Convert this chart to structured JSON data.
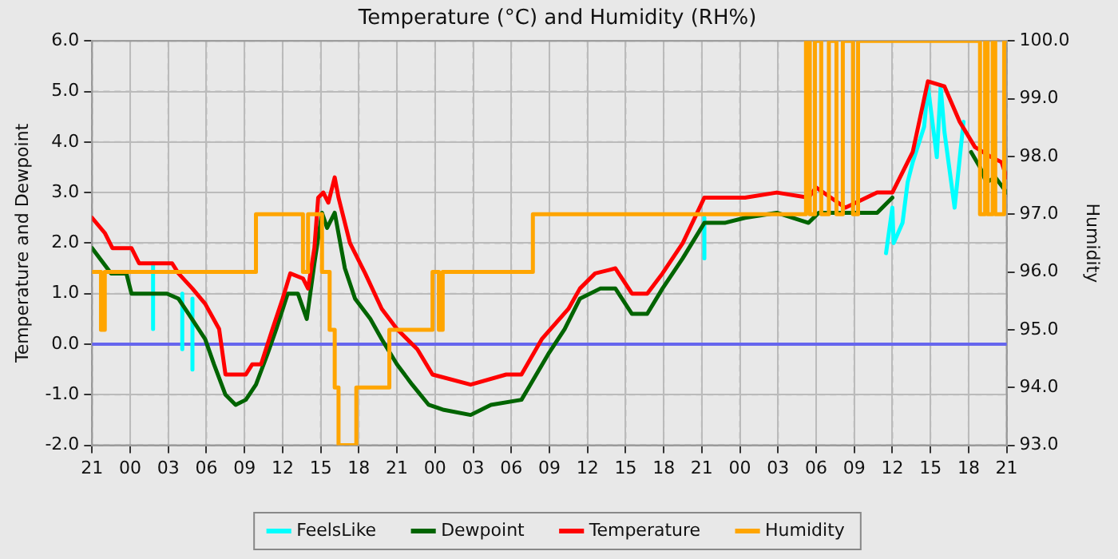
{
  "chart_data": {
    "type": "line",
    "title": "Temperature (°C) and Humidity (RH%)",
    "ylabel": "Temperature and Dewpoint",
    "y2label": "Humidity",
    "xlim": [
      "2000-01-01T21:00",
      "2000-01-04T21:00"
    ],
    "xticks": [
      {
        "value": "2000-01-01T21:00",
        "label": "21"
      },
      {
        "value": "2000-01-02T00:00",
        "label": "00"
      },
      {
        "value": "2000-01-02T03:00",
        "label": "03"
      },
      {
        "value": "2000-01-02T06:00",
        "label": "06"
      },
      {
        "value": "2000-01-02T09:00",
        "label": "09"
      },
      {
        "value": "2000-01-02T12:00",
        "label": "12"
      },
      {
        "value": "2000-01-02T15:00",
        "label": "15"
      },
      {
        "value": "2000-01-02T18:00",
        "label": "18"
      },
      {
        "value": "2000-01-02T21:00",
        "label": "21"
      },
      {
        "value": "2000-01-03T00:00",
        "label": "00"
      },
      {
        "value": "2000-01-03T03:00",
        "label": "03"
      },
      {
        "value": "2000-01-03T06:00",
        "label": "06"
      },
      {
        "value": "2000-01-03T09:00",
        "label": "09"
      },
      {
        "value": "2000-01-03T12:00",
        "label": "12"
      },
      {
        "value": "2000-01-03T15:00",
        "label": "15"
      },
      {
        "value": "2000-01-03T18:00",
        "label": "18"
      },
      {
        "value": "2000-01-03T21:00",
        "label": "21"
      },
      {
        "value": "2000-01-04T00:00",
        "label": "00"
      },
      {
        "value": "2000-01-04T03:00",
        "label": "03"
      },
      {
        "value": "2000-01-04T06:00",
        "label": "06"
      },
      {
        "value": "2000-01-04T09:00",
        "label": "09"
      },
      {
        "value": "2000-01-04T12:00",
        "label": "12"
      },
      {
        "value": "2000-01-04T15:00",
        "label": "15"
      },
      {
        "value": "2000-01-04T18:00",
        "label": "18"
      },
      {
        "value": "2000-01-04T21:00",
        "label": "21"
      }
    ],
    "ylim": [
      -2,
      6
    ],
    "yticks": [
      {
        "value": -2,
        "label": "-2.0"
      },
      {
        "value": -1,
        "label": "-1.0"
      },
      {
        "value": 0,
        "label": "0.0"
      },
      {
        "value": 1,
        "label": "1.0"
      },
      {
        "value": 2,
        "label": "2.0"
      },
      {
        "value": 3,
        "label": "3.0"
      },
      {
        "value": 4,
        "label": "4.0"
      },
      {
        "value": 5,
        "label": "5.0"
      },
      {
        "value": 6,
        "label": "6.0"
      }
    ],
    "y2lim": [
      93,
      100
    ],
    "y2ticks": [
      {
        "value": 93,
        "label": "93.0"
      },
      {
        "value": 94,
        "label": "94.0"
      },
      {
        "value": 95,
        "label": "95.0"
      },
      {
        "value": 96,
        "label": "96.0"
      },
      {
        "value": 97,
        "label": "97.0"
      },
      {
        "value": 98,
        "label": "98.0"
      },
      {
        "value": 99,
        "label": "99.0"
      },
      {
        "value": 100,
        "label": "100.0"
      }
    ],
    "grid": true,
    "legend": "bottom",
    "marker": "none",
    "line_style": "solid",
    "ref_lines": [
      {
        "axis": "y",
        "value": 0,
        "color": "#6666ee"
      }
    ],
    "series": [
      {
        "name": "FeelsLike",
        "color": "#00ffff",
        "x": [
          "2000-01-02T01:48",
          "2000-01-02T01:48",
          "2000-01-02T02:00",
          "2000-01-02T04:06",
          "2000-01-02T04:06",
          "2000-01-02T04:18",
          "2000-01-02T04:54",
          "2000-01-02T04:54",
          "2000-01-02T05:06",
          "2000-01-03T21:12",
          "2000-01-03T21:12",
          "2000-01-03T21:24",
          "2000-01-04T11:30",
          "2000-01-04T12:00",
          "2000-01-04T12:06",
          "2000-01-04T12:48",
          "2000-01-04T13:12",
          "2000-01-04T13:36",
          "2000-01-04T14:30",
          "2000-01-04T14:48",
          "2000-01-04T15:30",
          "2000-01-04T15:48",
          "2000-01-04T16:06",
          "2000-01-04T16:54",
          "2000-01-04T17:36"
        ],
        "values": [
          1.6,
          0.3,
          null,
          1.0,
          -0.1,
          null,
          0.9,
          -0.5,
          null,
          2.5,
          1.7,
          null,
          1.8,
          2.7,
          2.0,
          2.4,
          3.2,
          3.6,
          4.3,
          5.1,
          3.7,
          5.1,
          4.2,
          2.7,
          4.4
        ]
      },
      {
        "name": "Dewpoint",
        "color": "#006400",
        "x": [
          "2000-01-01T21:00",
          "2000-01-01T21:54",
          "2000-01-01T22:30",
          "2000-01-01T23:42",
          "2000-01-02T00:06",
          "2000-01-02T01:18",
          "2000-01-02T02:54",
          "2000-01-02T03:48",
          "2000-01-02T04:36",
          "2000-01-02T05:54",
          "2000-01-02T06:36",
          "2000-01-02T07:30",
          "2000-01-02T08:18",
          "2000-01-02T09:06",
          "2000-01-02T09:54",
          "2000-01-02T10:48",
          "2000-01-02T11:30",
          "2000-01-02T12:24",
          "2000-01-02T13:12",
          "2000-01-02T13:54",
          "2000-01-02T14:30",
          "2000-01-02T15:06",
          "2000-01-02T15:30",
          "2000-01-02T16:06",
          "2000-01-02T16:54",
          "2000-01-02T17:42",
          "2000-01-02T18:54",
          "2000-01-02T19:48",
          "2000-01-02T21:00",
          "2000-01-02T22:12",
          "2000-01-02T23:30",
          "2000-01-03T00:42",
          "2000-01-03T02:48",
          "2000-01-03T04:24",
          "2000-01-03T06:48",
          "2000-01-03T07:30",
          "2000-01-03T08:54",
          "2000-01-03T10:12",
          "2000-01-03T11:24",
          "2000-01-03T13:00",
          "2000-01-03T14:12",
          "2000-01-03T15:30",
          "2000-01-03T16:42",
          "2000-01-03T17:54",
          "2000-01-03T19:30",
          "2000-01-03T21:12",
          "2000-01-03T22:48",
          "2000-01-04T00:24",
          "2000-01-04T02:54",
          "2000-01-04T05:24",
          "2000-01-04T06:12",
          "2000-01-04T08:18",
          "2000-01-04T10:48",
          "2000-01-04T12:00",
          "2000-01-04T15:00",
          "2000-01-04T18:12",
          "2000-01-04T18:54",
          "2000-01-04T19:24",
          "2000-01-04T20:06",
          "2000-01-04T21:00"
        ],
        "values": [
          1.9,
          1.6,
          1.4,
          1.4,
          1.0,
          1.0,
          1.0,
          0.9,
          0.6,
          0.1,
          -0.4,
          -1.0,
          -1.2,
          -1.1,
          -0.8,
          -0.2,
          0.3,
          1.0,
          1.0,
          0.5,
          1.6,
          2.6,
          2.3,
          2.6,
          1.5,
          0.9,
          0.5,
          0.1,
          -0.4,
          -0.8,
          -1.2,
          -1.3,
          -1.4,
          -1.2,
          -1.1,
          -0.8,
          -0.2,
          0.3,
          0.9,
          1.1,
          1.1,
          0.6,
          0.6,
          1.1,
          1.7,
          2.4,
          2.4,
          2.5,
          2.6,
          2.4,
          2.6,
          2.6,
          2.6,
          2.9,
          null,
          3.8,
          3.5,
          3.2,
          3.3,
          3.0
        ]
      },
      {
        "name": "Temperature",
        "color": "#ff0000",
        "x": [
          "2000-01-01T21:00",
          "2000-01-01T22:00",
          "2000-01-01T22:36",
          "2000-01-02T00:06",
          "2000-01-02T00:42",
          "2000-01-02T01:42",
          "2000-01-02T03:18",
          "2000-01-02T03:48",
          "2000-01-02T04:54",
          "2000-01-02T05:54",
          "2000-01-02T07:00",
          "2000-01-02T07:30",
          "2000-01-02T09:06",
          "2000-01-02T09:36",
          "2000-01-02T10:18",
          "2000-01-02T11:12",
          "2000-01-02T12:00",
          "2000-01-02T12:36",
          "2000-01-02T13:36",
          "2000-01-02T14:00",
          "2000-01-02T14:30",
          "2000-01-02T14:48",
          "2000-01-02T15:12",
          "2000-01-02T15:36",
          "2000-01-02T16:06",
          "2000-01-02T16:24",
          "2000-01-02T17:18",
          "2000-01-02T18:30",
          "2000-01-02T19:48",
          "2000-01-02T21:00",
          "2000-01-02T22:36",
          "2000-01-02T23:48",
          "2000-01-03T02:48",
          "2000-01-03T05:36",
          "2000-01-03T06:48",
          "2000-01-03T08:24",
          "2000-01-03T10:30",
          "2000-01-03T11:24",
          "2000-01-03T12:36",
          "2000-01-03T14:12",
          "2000-01-03T15:30",
          "2000-01-03T16:42",
          "2000-01-03T17:54",
          "2000-01-03T19:30",
          "2000-01-03T21:12",
          "2000-01-04T00:24",
          "2000-01-04T02:54",
          "2000-01-04T05:24",
          "2000-01-04T06:00",
          "2000-01-04T08:18",
          "2000-01-04T10:48",
          "2000-01-04T12:00",
          "2000-01-04T13:36",
          "2000-01-04T14:48",
          "2000-01-04T16:06",
          "2000-01-04T17:18",
          "2000-01-04T18:30",
          "2000-01-04T19:48",
          "2000-01-04T20:36",
          "2000-01-04T21:00"
        ],
        "values": [
          2.5,
          2.2,
          1.9,
          1.9,
          1.6,
          1.6,
          1.6,
          1.4,
          1.1,
          0.8,
          0.3,
          -0.6,
          -0.6,
          -0.4,
          -0.4,
          0.3,
          0.9,
          1.4,
          1.3,
          1.1,
          1.9,
          2.9,
          3.0,
          2.8,
          3.3,
          2.9,
          2.0,
          1.4,
          0.7,
          0.3,
          -0.1,
          -0.6,
          -0.8,
          -0.6,
          -0.6,
          0.1,
          0.7,
          1.1,
          1.4,
          1.5,
          1.0,
          1.0,
          1.4,
          2.0,
          2.9,
          2.9,
          3.0,
          2.9,
          3.1,
          2.7,
          3.0,
          3.0,
          3.8,
          5.2,
          5.1,
          4.4,
          3.9,
          3.7,
          3.6,
          3.3
        ]
      },
      {
        "name": "Humidity",
        "color": "#ffa500",
        "type": "step",
        "axis": "y2",
        "x": [
          "2000-01-01T21:00",
          "2000-01-01T21:42",
          "2000-01-01T22:00",
          "2000-01-02T09:54",
          "2000-01-02T13:36",
          "2000-01-02T14:00",
          "2000-01-02T15:06",
          "2000-01-02T15:42",
          "2000-01-02T16:06",
          "2000-01-02T16:24",
          "2000-01-02T17:48",
          "2000-01-02T20:24",
          "2000-01-02T23:48",
          "2000-01-03T00:18",
          "2000-01-03T00:36",
          "2000-01-03T07:42",
          "2000-01-04T05:12",
          "2000-01-04T05:30",
          "2000-01-04T05:54",
          "2000-01-04T06:24",
          "2000-01-04T07:00",
          "2000-01-04T07:36",
          "2000-01-04T08:06",
          "2000-01-04T08:54",
          "2000-01-04T09:18",
          "2000-01-04T18:54",
          "2000-01-04T19:18",
          "2000-01-04T19:30",
          "2000-01-04T19:54",
          "2000-01-04T20:06",
          "2000-01-04T20:48",
          "2000-01-04T21:00"
        ],
        "values": [
          96,
          95,
          96,
          97,
          96,
          97,
          96,
          95,
          94,
          93,
          94,
          95,
          96,
          95,
          96,
          97,
          100,
          97,
          100,
          97,
          100,
          97,
          100,
          97,
          100,
          97,
          100,
          97,
          100,
          97,
          100,
          100
        ]
      }
    ]
  }
}
